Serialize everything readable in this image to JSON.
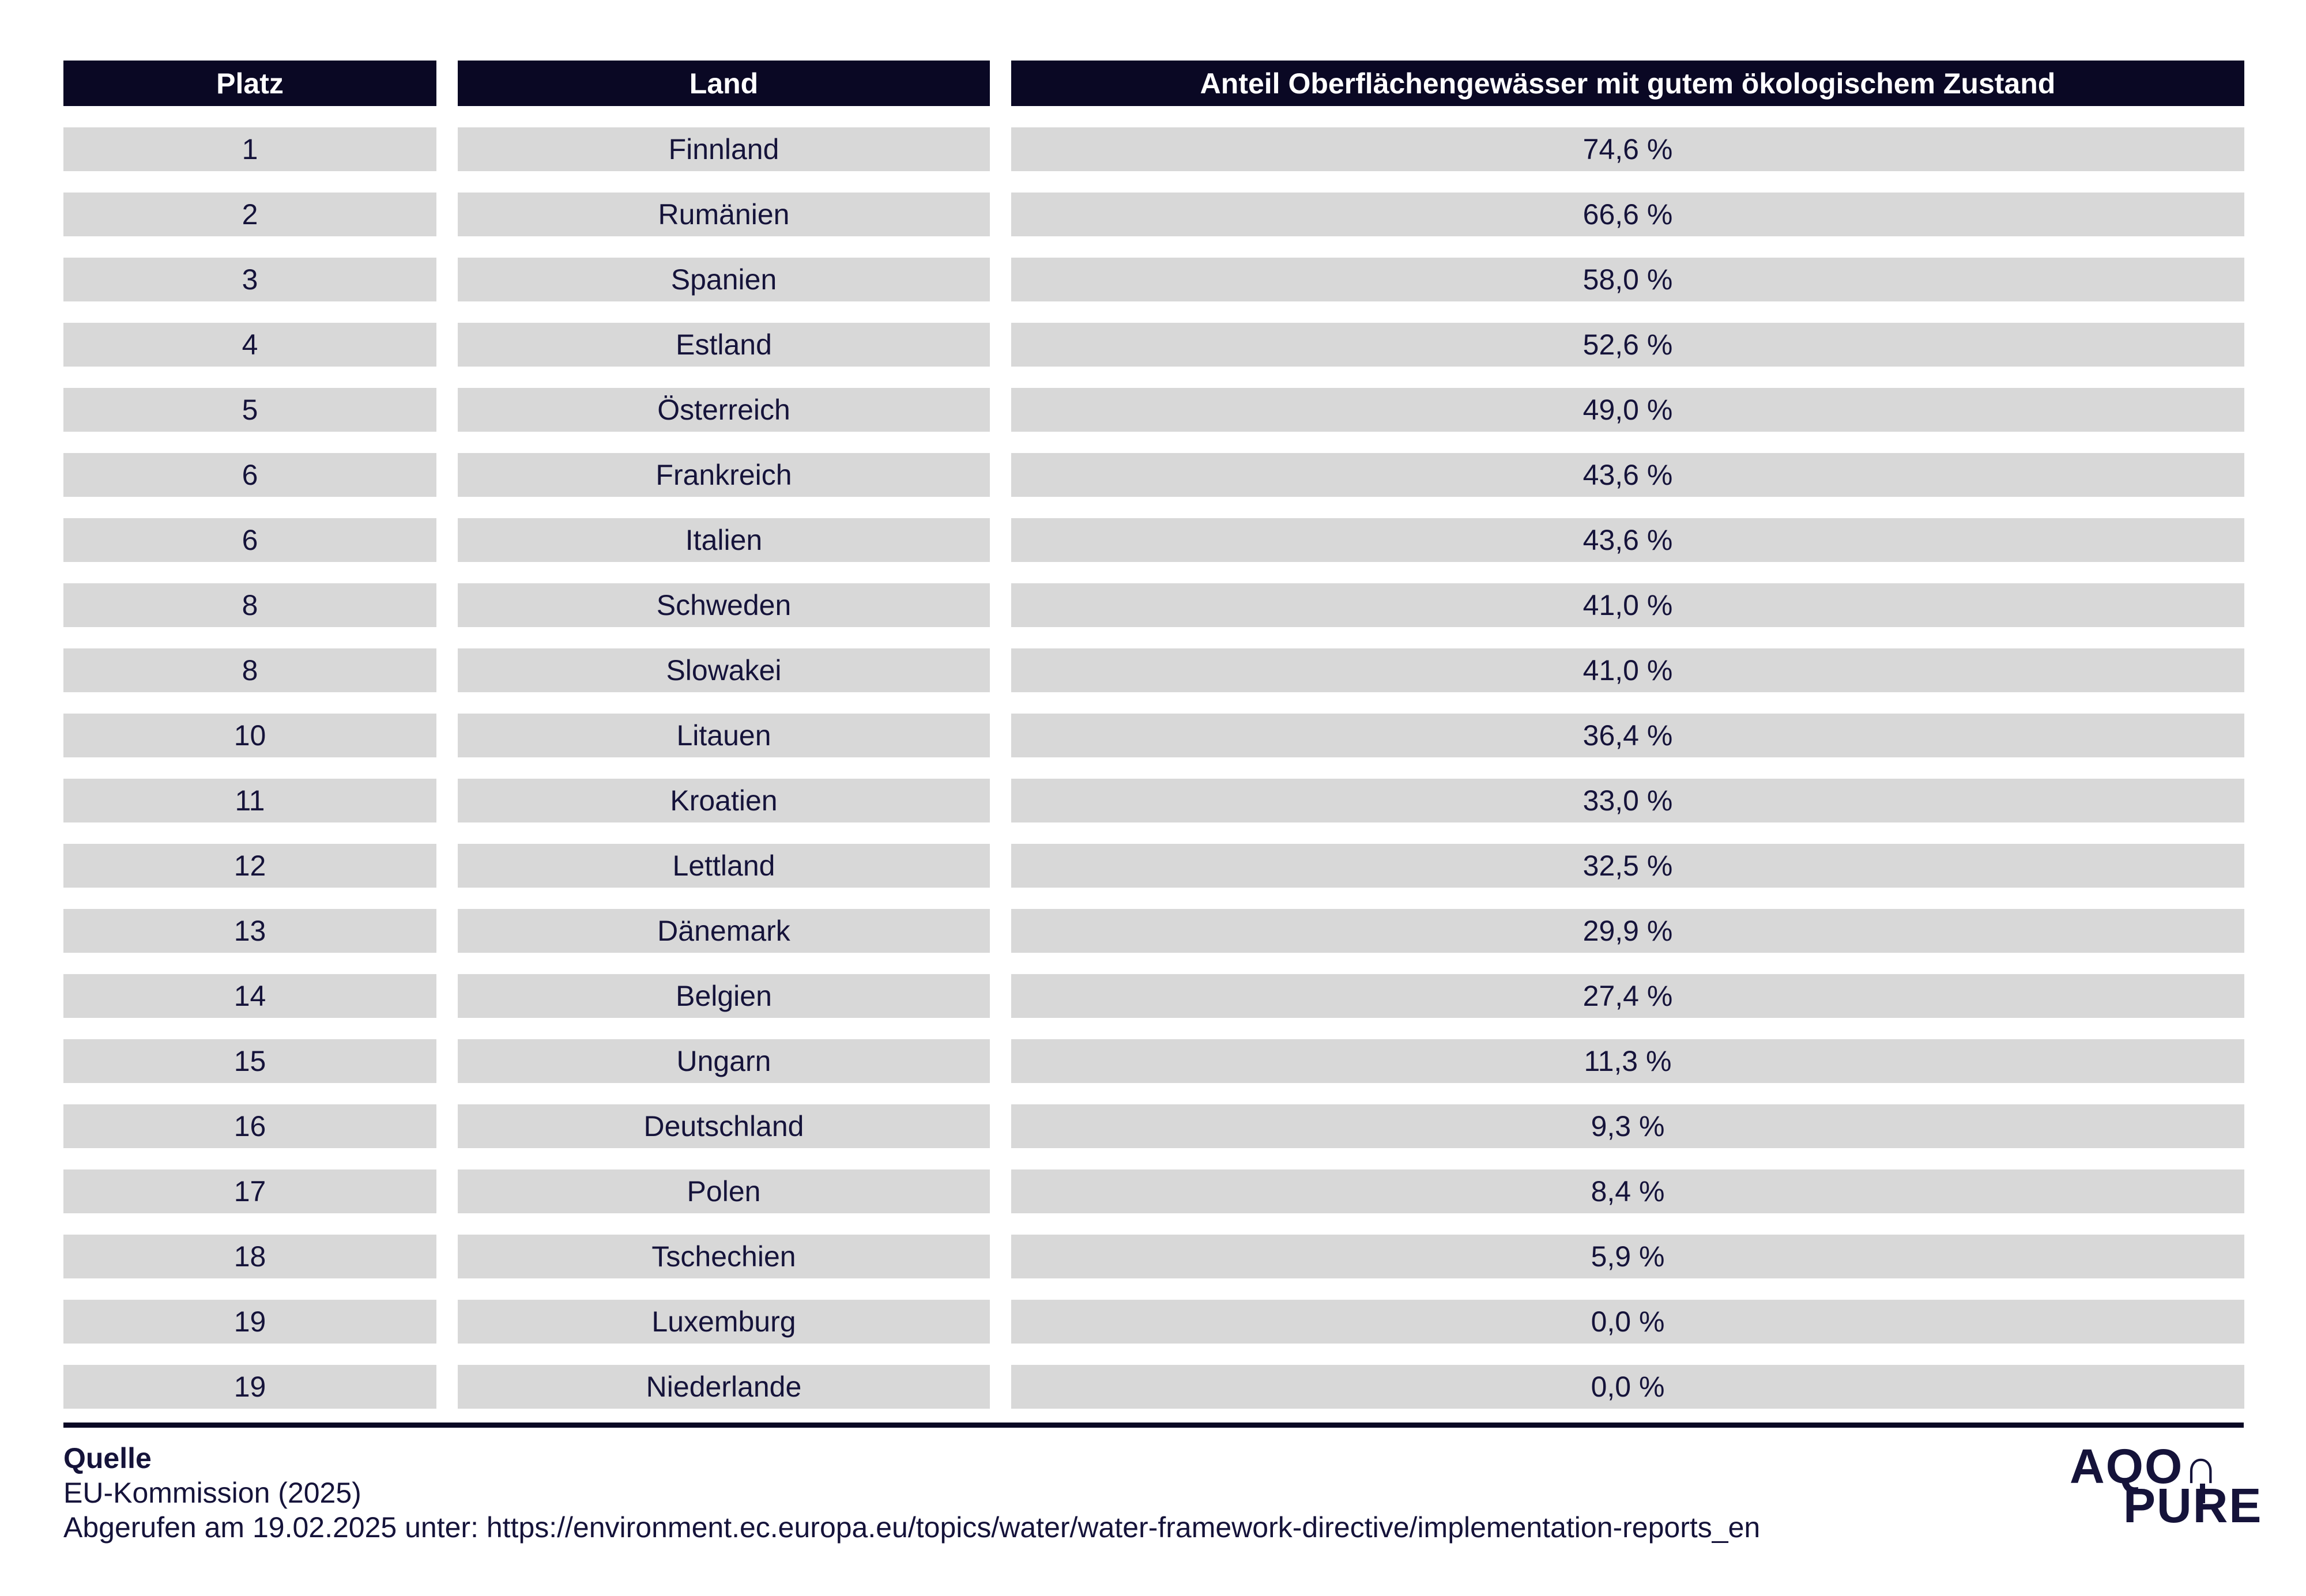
{
  "table": {
    "columns": [
      "Platz",
      "Land",
      "Anteil Oberflächengewässer mit gutem ökologischem Zustand"
    ],
    "rows": [
      {
        "platz": "1",
        "land": "Finnland",
        "anteil": "74,6 %"
      },
      {
        "platz": "2",
        "land": "Rumänien",
        "anteil": "66,6 %"
      },
      {
        "platz": "3",
        "land": "Spanien",
        "anteil": "58,0 %"
      },
      {
        "platz": "4",
        "land": "Estland",
        "anteil": "52,6 %"
      },
      {
        "platz": "5",
        "land": "Österreich",
        "anteil": "49,0 %"
      },
      {
        "platz": "6",
        "land": "Frankreich",
        "anteil": "43,6 %"
      },
      {
        "platz": "6",
        "land": "Italien",
        "anteil": "43,6 %"
      },
      {
        "platz": "8",
        "land": "Schweden",
        "anteil": "41,0 %"
      },
      {
        "platz": "8",
        "land": "Slowakei",
        "anteil": "41,0 %"
      },
      {
        "platz": "10",
        "land": "Litauen",
        "anteil": "36,4 %"
      },
      {
        "platz": "11",
        "land": "Kroatien",
        "anteil": "33,0 %"
      },
      {
        "platz": "12",
        "land": "Lettland",
        "anteil": "32,5 %"
      },
      {
        "platz": "13",
        "land": "Dänemark",
        "anteil": "29,9 %"
      },
      {
        "platz": "14",
        "land": "Belgien",
        "anteil": "27,4 %"
      },
      {
        "platz": "15",
        "land": "Ungarn",
        "anteil": "11,3 %"
      },
      {
        "platz": "16",
        "land": "Deutschland",
        "anteil": "9,3 %"
      },
      {
        "platz": "17",
        "land": "Polen",
        "anteil": "8,4 %"
      },
      {
        "platz": "18",
        "land": "Tschechien",
        "anteil": "5,9 %"
      },
      {
        "platz": "19",
        "land": "Luxemburg",
        "anteil": "0,0 %"
      },
      {
        "platz": "19",
        "land": "Niederlande",
        "anteil": "0,0 %"
      }
    ]
  },
  "chart_data": {
    "type": "table",
    "title": "",
    "columns": [
      "Platz",
      "Land",
      "Anteil Oberflächengewässer mit gutem ökologischem Zustand"
    ],
    "rows": [
      [
        "1",
        "Finnland",
        "74,6 %"
      ],
      [
        "2",
        "Rumänien",
        "66,6 %"
      ],
      [
        "3",
        "Spanien",
        "58,0 %"
      ],
      [
        "4",
        "Estland",
        "52,6 %"
      ],
      [
        "5",
        "Österreich",
        "49,0 %"
      ],
      [
        "6",
        "Frankreich",
        "43,6 %"
      ],
      [
        "6",
        "Italien",
        "43,6 %"
      ],
      [
        "8",
        "Schweden",
        "41,0 %"
      ],
      [
        "8",
        "Slowakei",
        "41,0 %"
      ],
      [
        "10",
        "Litauen",
        "36,4 %"
      ],
      [
        "11",
        "Kroatien",
        "33,0 %"
      ],
      [
        "12",
        "Lettland",
        "32,5 %"
      ],
      [
        "13",
        "Dänemark",
        "29,9 %"
      ],
      [
        "14",
        "Belgien",
        "27,4 %"
      ],
      [
        "15",
        "Ungarn",
        "11,3 %"
      ],
      [
        "16",
        "Deutschland",
        "9,3 %"
      ],
      [
        "17",
        "Polen",
        "8,4 %"
      ],
      [
        "18",
        "Tschechien",
        "5,9 %"
      ],
      [
        "19",
        "Luxemburg",
        "0,0 %"
      ],
      [
        "19",
        "Niederlande",
        "0,0 %"
      ]
    ],
    "values_numeric_percent": [
      74.6,
      66.6,
      58.0,
      52.6,
      49.0,
      43.6,
      43.6,
      41.0,
      41.0,
      36.4,
      33.0,
      32.5,
      29.9,
      27.4,
      11.3,
      9.3,
      8.4,
      5.9,
      0.0,
      0.0
    ]
  },
  "footer": {
    "source_label": "Quelle",
    "source_name": "EU-Kommission (2025)",
    "source_retrieved": "Abgerufen am 19.02.2025 unter: https://environment.ec.europa.eu/topics/water/water-framework-directive/implementation-reports_en"
  },
  "logo": {
    "brand": "AQON PURE",
    "line1": "AQO∩",
    "line2": "PURE"
  },
  "colors": {
    "header_bg": "#0a0824",
    "row_bg": "#d8d8d8",
    "text_navy": "#15133a",
    "divider": "#0a0824"
  }
}
